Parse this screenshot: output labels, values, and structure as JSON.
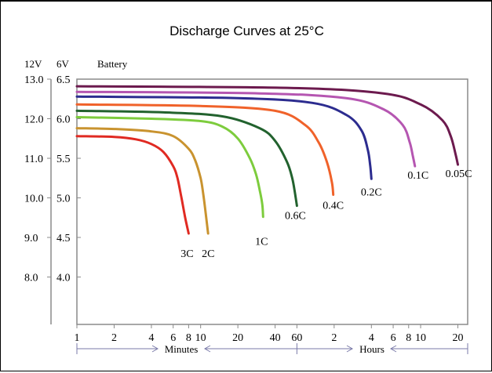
{
  "chart_data": {
    "type": "line",
    "title": "Discharge Curves at 25°C",
    "y_axis_headers": {
      "volt12": "12V",
      "volt6": "6V",
      "battery": "Battery"
    },
    "y_ticks_12v": [
      "13.0",
      "12.0",
      "11.0",
      "10.0",
      "9.0",
      "8.0"
    ],
    "y_ticks_6v": [
      "6.5",
      "6.0",
      "5.5",
      "5.0",
      "4.5",
      "4.0"
    ],
    "ylim_6v": [
      3.5,
      6.5
    ],
    "xlim_minutes": [
      1,
      1440
    ],
    "x_scale": "log",
    "x_ticks": [
      {
        "minutes": 1,
        "label": "1"
      },
      {
        "minutes": 2,
        "label": "2"
      },
      {
        "minutes": 4,
        "label": "4"
      },
      {
        "minutes": 6,
        "label": "6"
      },
      {
        "minutes": 8,
        "label": "8"
      },
      {
        "minutes": 10,
        "label": "10"
      },
      {
        "minutes": 20,
        "label": "20"
      },
      {
        "minutes": 40,
        "label": "40"
      },
      {
        "minutes": 60,
        "label": "60"
      },
      {
        "minutes": 120,
        "label": "2"
      },
      {
        "minutes": 240,
        "label": "4"
      },
      {
        "minutes": 360,
        "label": "6"
      },
      {
        "minutes": 480,
        "label": "8"
      },
      {
        "minutes": 600,
        "label": "10"
      },
      {
        "minutes": 1200,
        "label": "20"
      }
    ],
    "unit_labels": {
      "minutes": "Minutes",
      "hours": "Hours"
    },
    "grid": false,
    "series": [
      {
        "name": "3C",
        "color": "#e02a22",
        "x": [
          1,
          2,
          3,
          4,
          5,
          6,
          6.5,
          7,
          7.5,
          8
        ],
        "y": [
          5.78,
          5.77,
          5.74,
          5.68,
          5.58,
          5.4,
          5.25,
          5.0,
          4.75,
          4.55
        ]
      },
      {
        "name": "2C",
        "color": "#c9932f",
        "x": [
          1,
          2,
          4,
          6,
          8,
          9,
          10,
          10.5,
          11,
          11.5
        ],
        "y": [
          5.88,
          5.87,
          5.84,
          5.78,
          5.62,
          5.48,
          5.25,
          5.05,
          4.8,
          4.55
        ]
      },
      {
        "name": "1C",
        "color": "#7dcc3d",
        "x": [
          1,
          4,
          10,
          15,
          20,
          25,
          28,
          30,
          31.5,
          32
        ],
        "y": [
          6.02,
          6.0,
          5.97,
          5.9,
          5.75,
          5.5,
          5.3,
          5.1,
          4.92,
          4.76
        ]
      },
      {
        "name": "0.6C",
        "color": "#22622e",
        "x": [
          1,
          5,
          15,
          30,
          40,
          50,
          55,
          58,
          60
        ],
        "y": [
          6.1,
          6.08,
          6.03,
          5.88,
          5.72,
          5.45,
          5.25,
          5.05,
          4.9
        ]
      },
      {
        "name": "0.4C",
        "color": "#f0622a",
        "x": [
          1,
          10,
          40,
          70,
          90,
          105,
          115,
          118
        ],
        "y": [
          6.18,
          6.16,
          6.1,
          5.92,
          5.7,
          5.45,
          5.2,
          5.04
        ]
      },
      {
        "name": "0.2C",
        "color": "#2c2c8f",
        "x": [
          1,
          20,
          80,
          150,
          200,
          225,
          235,
          240
        ],
        "y": [
          6.28,
          6.26,
          6.2,
          6.05,
          5.85,
          5.6,
          5.4,
          5.24
        ]
      },
      {
        "name": "0.1C",
        "color": "#b556b1",
        "x": [
          1,
          30,
          150,
          300,
          430,
          490,
          520,
          540
        ],
        "y": [
          6.34,
          6.32,
          6.26,
          6.12,
          5.92,
          5.7,
          5.52,
          5.4
        ]
      },
      {
        "name": "0.05C",
        "color": "#6c1a4e",
        "x": [
          1,
          50,
          300,
          600,
          900,
          1050,
          1150,
          1200
        ],
        "y": [
          6.41,
          6.39,
          6.32,
          6.18,
          5.98,
          5.78,
          5.55,
          5.42
        ]
      }
    ]
  }
}
